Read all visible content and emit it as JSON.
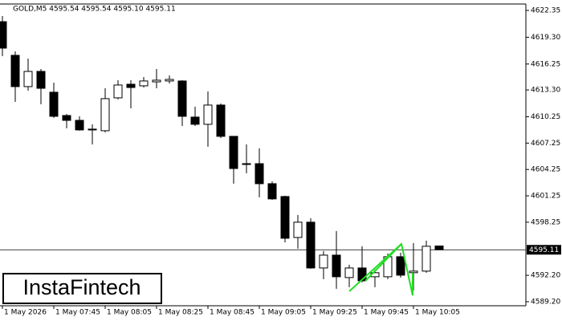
{
  "chart_data": {
    "type": "candlestick",
    "title": "GOLD,M5  4595.54 4595.54 4595.10 4595.11",
    "categories": [
      "1 May 2026",
      null,
      null,
      null,
      "1 May 07:45",
      null,
      null,
      null,
      "1 May 08:05",
      null,
      null,
      null,
      "1 May 08:25",
      null,
      null,
      null,
      "1 May 08:45",
      null,
      null,
      null,
      "1 May 09:05",
      null,
      null,
      null,
      "1 May 09:25",
      null,
      null,
      null,
      "1 May 09:45",
      null,
      null,
      null,
      "1 May 10:05",
      null,
      null
    ],
    "open": [
      4621.07,
      4617.24,
      4613.68,
      4615.41,
      4613.04,
      4610.39,
      4609.84,
      4608.84,
      4608.66,
      4612.4,
      4613.95,
      4613.77,
      4614.22,
      4614.32,
      4614.32,
      4610.21,
      4609.39,
      4611.58,
      4608.02,
      4604.91,
      4604.91,
      4602.63,
      4601.17,
      4596.51,
      4598.25,
      4593.04,
      4594.5,
      4591.95,
      4593.04,
      4592.04,
      4592.04,
      4594.32,
      4592.5,
      4592.68,
      4595.54
    ],
    "high": [
      4621.71,
      4617.69,
      4616.87,
      4615.68,
      4614.13,
      4610.57,
      4610.3,
      4609.39,
      4613.49,
      4614.41,
      4614.41,
      4614.77,
      4615.68,
      4614.95,
      4614.41,
      4611.39,
      4613.13,
      4611.76,
      4608.02,
      4607.1,
      4606.65,
      4602.9,
      4601.26,
      4599.07,
      4598.7,
      4594.96,
      4597.24,
      4593.41,
      4595.51,
      4592.86,
      4594.69,
      4594.78,
      4595.87,
      4596.15,
      4595.54
    ],
    "low": [
      4617.15,
      4611.94,
      4613.22,
      4611.67,
      4610.12,
      4608.93,
      4608.66,
      4607.1,
      4608.47,
      4612.22,
      4611.21,
      4613.58,
      4613.49,
      4614.04,
      4609.2,
      4609.2,
      4606.83,
      4607.83,
      4602.63,
      4603.82,
      4601.08,
      4600.8,
      4595.96,
      4595.24,
      4592.95,
      4591.77,
      4590.67,
      4590.85,
      4591.4,
      4590.85,
      4591.77,
      4591.95,
      4590.49,
      4592.5,
      4595.1
    ],
    "close": [
      4618.06,
      4613.68,
      4615.41,
      4613.49,
      4610.3,
      4609.84,
      4608.75,
      4608.75,
      4612.31,
      4613.86,
      4613.58,
      4614.32,
      4614.41,
      4614.5,
      4610.3,
      4609.39,
      4611.58,
      4608.02,
      4604.36,
      4604.82,
      4602.63,
      4600.9,
      4596.42,
      4598.25,
      4593.04,
      4594.5,
      4592.04,
      4593.04,
      4591.58,
      4592.5,
      4594.32,
      4592.22,
      4592.68,
      4595.51,
      4595.11
    ],
    "up_color": "#ffffff",
    "down_color": "#000000",
    "current_price": 4595.11,
    "ylim": [
      4588.74,
      4623.08
    ],
    "yticks": [
      4622.35,
      {
        "value": 4619.3,
        "label": "4619.30"
      },
      4616.25,
      {
        "value": 4613.3,
        "label": "4613.30"
      },
      4610.25,
      4607.25,
      4604.25,
      4601.25,
      4598.25,
      {
        "value": 4592.2,
        "label": "4592.20"
      },
      {
        "value": 4589.2,
        "label": "4589.20"
      }
    ]
  },
  "watermark": "InstaFintech"
}
